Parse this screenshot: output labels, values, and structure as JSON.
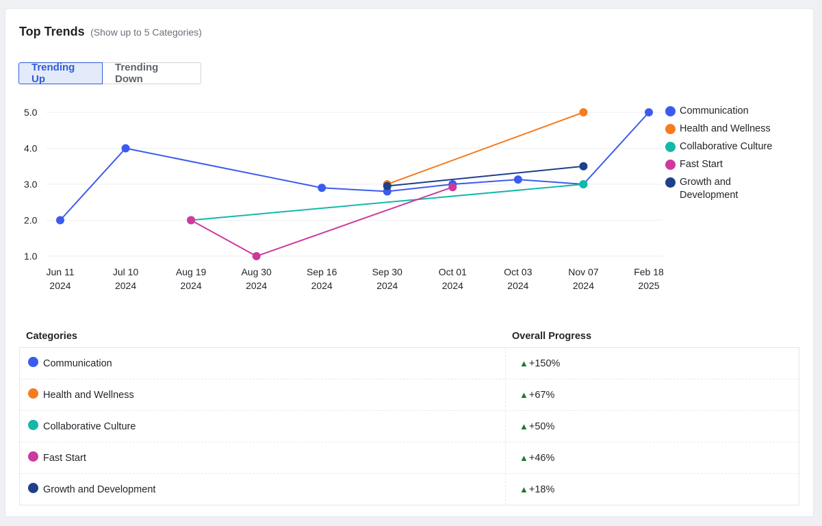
{
  "header": {
    "title": "Top Trends",
    "subtitle": "(Show up to 5 Categories)"
  },
  "toggle": {
    "trending_up": "Trending Up",
    "trending_down": "Trending Down",
    "selected": "Trending Up"
  },
  "chart_data": {
    "type": "line",
    "x": [
      [
        "Jun 11",
        "2024"
      ],
      [
        "Jul 10",
        "2024"
      ],
      [
        "Aug 19",
        "2024"
      ],
      [
        "Aug 30",
        "2024"
      ],
      [
        "Sep 16",
        "2024"
      ],
      [
        "Sep 30",
        "2024"
      ],
      [
        "Oct 01",
        "2024"
      ],
      [
        "Oct 03",
        "2024"
      ],
      [
        "Nov 07",
        "2024"
      ],
      [
        "Feb 18",
        "2025"
      ]
    ],
    "yticks": [
      "5.0",
      "4.0",
      "3.0",
      "2.0",
      "1.0"
    ],
    "ylim": [
      1,
      5
    ],
    "grid": true,
    "legend": "right",
    "series": [
      {
        "name": "Communication",
        "color": "#3b5bef",
        "points": [
          [
            0,
            2.0
          ],
          [
            1,
            4.0
          ],
          [
            4,
            2.9
          ],
          [
            5,
            2.8
          ],
          [
            6,
            3.0
          ],
          [
            7,
            3.13
          ],
          [
            8,
            3.0
          ],
          [
            9,
            5.0
          ]
        ]
      },
      {
        "name": "Health and Wellness",
        "color": "#f57c1f",
        "points": [
          [
            5,
            3.0
          ],
          [
            8,
            5.0
          ]
        ]
      },
      {
        "name": "Collaborative Culture",
        "color": "#13b8a9",
        "points": [
          [
            2,
            2.0
          ],
          [
            8,
            3.0
          ]
        ]
      },
      {
        "name": "Fast Start",
        "color": "#cc3a9e",
        "points": [
          [
            2,
            2.0
          ],
          [
            3,
            1.0
          ],
          [
            6,
            2.92
          ]
        ]
      },
      {
        "name": "Growth and Development",
        "color": "#1e3f8a",
        "points": [
          [
            5,
            2.95
          ],
          [
            8,
            3.5
          ]
        ]
      }
    ]
  },
  "table": {
    "headers": [
      "Categories",
      "Overall Progress"
    ],
    "rows": [
      {
        "category": "Communication",
        "color": "#3b5bef",
        "arrow": "▲",
        "progress": "+150%"
      },
      {
        "category": "Health and Wellness",
        "color": "#f57c1f",
        "arrow": "▲",
        "progress": "+67%"
      },
      {
        "category": "Collaborative Culture",
        "color": "#13b8a9",
        "arrow": "▲",
        "progress": "+50%"
      },
      {
        "category": "Fast Start",
        "color": "#cc3a9e",
        "arrow": "▲",
        "progress": "+46%"
      },
      {
        "category": "Growth and Development",
        "color": "#1e3f8a",
        "arrow": "▲",
        "progress": "+18%"
      }
    ]
  }
}
